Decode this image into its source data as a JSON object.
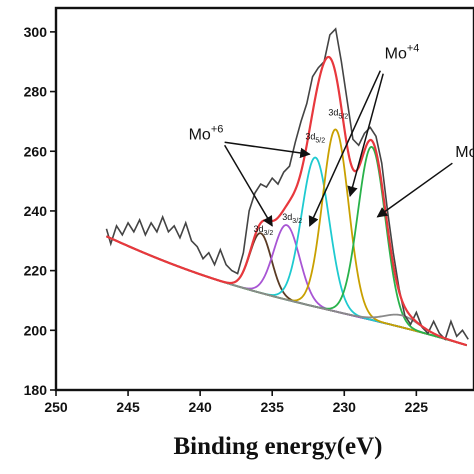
{
  "chart_data": {
    "type": "line",
    "title": "",
    "xlabel": "Binding energy(eV)",
    "ylabel": "",
    "xlim": [
      250,
      221
    ],
    "ylim": [
      180,
      308
    ],
    "x_reversed": true,
    "x_ticks": [
      250,
      245,
      240,
      235,
      230,
      225
    ],
    "y_ticks": [
      180,
      200,
      220,
      240,
      260,
      280,
      300
    ],
    "grid": false,
    "legend": "none",
    "colors": {
      "raw": "#444444",
      "envelope": "#e8383d",
      "background": "#2a4f9a",
      "mo6_3d32": "#5a3b24",
      "mo6_3d52": "#a855d4",
      "mo4_3d32": "#1ecad0",
      "mo4_3d52": "#c9a000",
      "mo_other": "#28b24a",
      "grey_peak": "#8a8a8a"
    },
    "background": {
      "x_start": 246.5,
      "y_start": 231.5,
      "x_end": 221.5,
      "y_end": 195
    },
    "peaks": [
      {
        "center": 235.8,
        "height": 20,
        "sigma": 0.75
      },
      {
        "center": 234.0,
        "height": 25,
        "sigma": 0.9
      },
      {
        "center": 232.0,
        "height": 50,
        "sigma": 0.95
      },
      {
        "center": 230.6,
        "height": 61,
        "sigma": 0.9
      },
      {
        "center": 228.1,
        "height": 58,
        "sigma": 0.95
      },
      {
        "center": 226.0,
        "height": 4,
        "sigma": 1.2
      }
    ],
    "raw_points": [
      [
        246.5,
        234
      ],
      [
        246.2,
        229
      ],
      [
        245.8,
        235
      ],
      [
        245.4,
        232
      ],
      [
        245,
        236
      ],
      [
        244.6,
        233
      ],
      [
        244.2,
        237
      ],
      [
        243.8,
        232
      ],
      [
        243.4,
        236
      ],
      [
        243,
        233
      ],
      [
        242.6,
        238
      ],
      [
        242.2,
        233
      ],
      [
        241.8,
        235
      ],
      [
        241.4,
        231
      ],
      [
        241,
        236
      ],
      [
        240.6,
        230
      ],
      [
        240.2,
        228
      ],
      [
        239.8,
        224
      ],
      [
        239.4,
        226
      ],
      [
        239.0,
        222
      ],
      [
        238.6,
        227
      ],
      [
        238.2,
        222
      ],
      [
        237.8,
        220
      ],
      [
        237.4,
        219
      ],
      [
        237.0,
        226
      ],
      [
        236.6,
        240
      ],
      [
        236.2,
        246
      ],
      [
        235.8,
        249
      ],
      [
        235.4,
        248
      ],
      [
        235.0,
        251
      ],
      [
        234.6,
        249
      ],
      [
        234.2,
        253
      ],
      [
        233.8,
        255
      ],
      [
        233.4,
        263
      ],
      [
        233.0,
        270
      ],
      [
        232.6,
        276
      ],
      [
        232.2,
        285
      ],
      [
        231.8,
        288
      ],
      [
        231.4,
        290
      ],
      [
        231.0,
        299
      ],
      [
        230.6,
        301
      ],
      [
        230.2,
        290
      ],
      [
        229.8,
        277
      ],
      [
        229.4,
        264
      ],
      [
        229.0,
        262
      ],
      [
        228.6,
        266
      ],
      [
        228.2,
        268
      ],
      [
        227.8,
        265
      ],
      [
        227.4,
        256
      ],
      [
        227.0,
        240
      ],
      [
        226.6,
        226
      ],
      [
        226.2,
        214
      ],
      [
        225.8,
        205
      ],
      [
        225.4,
        202
      ],
      [
        225.0,
        206
      ],
      [
        224.6,
        201
      ],
      [
        224.2,
        199
      ],
      [
        223.8,
        203
      ],
      [
        223.4,
        199
      ],
      [
        223.0,
        197
      ],
      [
        222.6,
        203
      ],
      [
        222.2,
        198
      ],
      [
        221.8,
        200
      ],
      [
        221.4,
        197
      ]
    ],
    "annotations": [
      {
        "label": "Mo",
        "sup": "+6",
        "sub": "",
        "x": 240.8,
        "y": 264
      },
      {
        "label": "Mo",
        "sup": "+4",
        "sub": "",
        "x": 227.2,
        "y": 291
      },
      {
        "label": "Mo",
        "sup": "",
        "sub": "",
        "x": 222.3,
        "y": 258
      },
      {
        "label": "3d",
        "sup": "",
        "sub": "3/2",
        "x": 236.3,
        "y": 233
      },
      {
        "label": "3d",
        "sup": "",
        "sub": "3/2",
        "x": 234.3,
        "y": 237
      },
      {
        "label": "3d",
        "sup": "",
        "sub": "5/2",
        "x": 232.7,
        "y": 264
      },
      {
        "label": "3d",
        "sup": "",
        "sub": "5/2",
        "x": 231.1,
        "y": 272
      }
    ],
    "arrows": [
      {
        "from": [
          238.3,
          263
        ],
        "to": [
          232.4,
          259
        ]
      },
      {
        "from": [
          238.3,
          262
        ],
        "to": [
          235.0,
          235
        ]
      },
      {
        "from": [
          227.5,
          287
        ],
        "to": [
          232.4,
          235
        ]
      },
      {
        "from": [
          227.3,
          286
        ],
        "to": [
          229.6,
          245
        ]
      },
      {
        "from": [
          222.5,
          256
        ],
        "to": [
          227.7,
          238
        ]
      }
    ]
  }
}
